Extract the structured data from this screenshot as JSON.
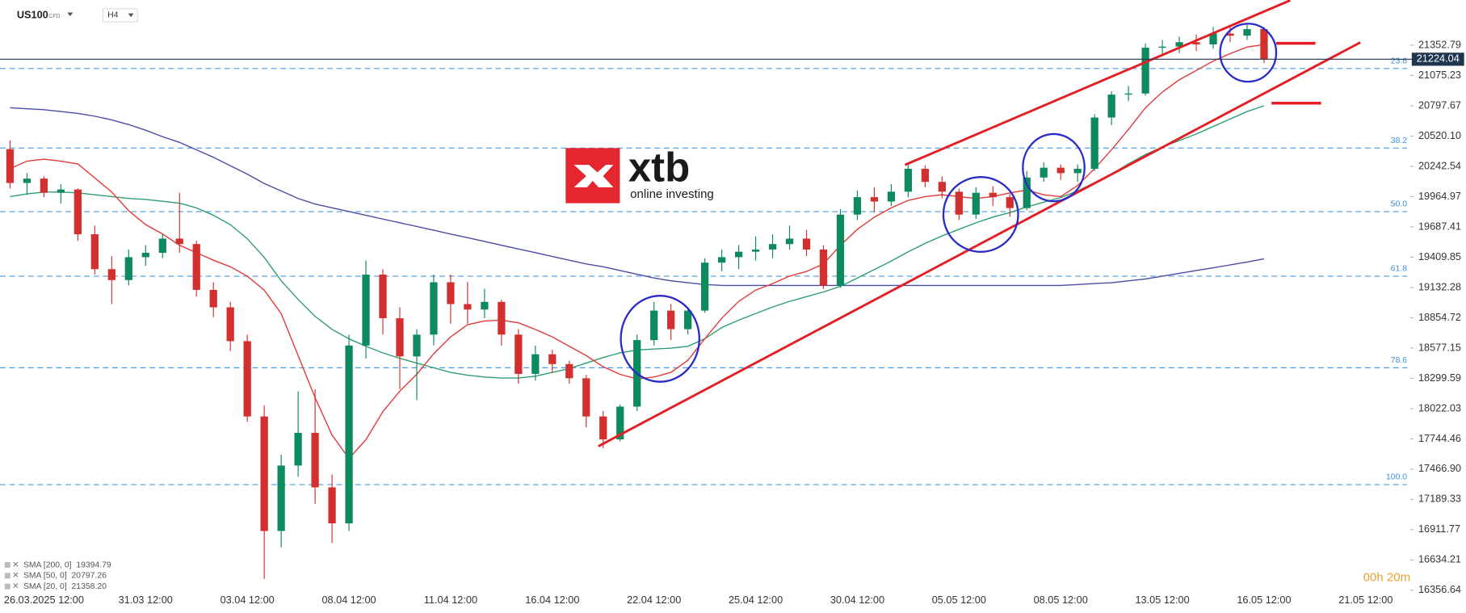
{
  "chart_data": {
    "type": "candlestick",
    "symbol": "US100",
    "instrument_type": "CFD",
    "timeframe": "H4",
    "logo": {
      "name": "xtb",
      "tagline": "online investing"
    },
    "countdown": "00h 20m",
    "up_color": "#0e8a5f",
    "down_color": "#d32f2f",
    "grid": false,
    "categories": [
      null,
      null,
      "26.03.2025 12:00",
      null,
      null,
      null,
      null,
      null,
      "31.03 12:00",
      null,
      null,
      null,
      null,
      null,
      "03.04 12:00",
      null,
      null,
      null,
      null,
      null,
      "08.04 12:00",
      null,
      null,
      null,
      null,
      null,
      "11.04 12:00",
      null,
      null,
      null,
      null,
      null,
      "16.04 12:00",
      null,
      null,
      null,
      null,
      null,
      "22.04 12:00",
      null,
      null,
      null,
      null,
      null,
      "25.04 12:00",
      null,
      null,
      null,
      null,
      null,
      "30.04 12:00",
      null,
      null,
      null,
      null,
      null,
      "05.05 12:00",
      null,
      null,
      null,
      null,
      null,
      "08.05 12:00",
      null,
      null,
      null,
      null,
      null,
      "13.05 12:00",
      null,
      null,
      null,
      null,
      null,
      "16.05 12:00",
      null,
      null,
      null,
      null,
      null,
      "21.05 12:00",
      null,
      null
    ],
    "open": [
      20400,
      20090,
      20130,
      20000,
      20030,
      19620,
      19300,
      19200,
      19410,
      19450,
      19580,
      19530,
      19110,
      18950,
      18640,
      17950,
      16900,
      17500,
      17800,
      17300,
      16970,
      18600,
      19250,
      18850,
      18500,
      18700,
      19180,
      18980,
      18930,
      19000,
      18700,
      18340,
      18520,
      18430,
      18300,
      17950,
      17740,
      18040,
      18650,
      18920,
      18750,
      18920,
      19360,
      19410,
      19460,
      19480,
      19530,
      19580,
      19480,
      19150,
      19800,
      19960,
      19920,
      20010,
      20220,
      20100,
      20010,
      19800,
      20000,
      19960,
      19860,
      20140,
      20230,
      20180,
      20220,
      20690,
      20900,
      20910,
      21330,
      21340,
      21380,
      21360,
      21460,
      21440,
      21500,
      null,
      null,
      null,
      null,
      null,
      null,
      null,
      null
    ],
    "high": [
      20480,
      20180,
      20150,
      20080,
      20040,
      19700,
      19420,
      19480,
      19520,
      19620,
      20000,
      19560,
      19180,
      19000,
      18700,
      18050,
      17600,
      18180,
      18200,
      17420,
      18700,
      19380,
      19300,
      18950,
      18750,
      19250,
      19250,
      19180,
      19120,
      19020,
      18750,
      18600,
      18560,
      18460,
      18330,
      18000,
      18060,
      18700,
      19000,
      18980,
      18950,
      19400,
      19480,
      19520,
      19600,
      19620,
      19700,
      19660,
      19520,
      19850,
      20020,
      20050,
      20080,
      20260,
      20250,
      20150,
      20040,
      20050,
      20060,
      19990,
      20200,
      20280,
      20260,
      20260,
      20720,
      20930,
      20980,
      21370,
      21400,
      21430,
      21450,
      21520,
      21520,
      21540,
      21520,
      null,
      null,
      null,
      null,
      null,
      null,
      null,
      null
    ],
    "low": [
      20040,
      19980,
      19960,
      19900,
      19560,
      19250,
      18980,
      19150,
      19330,
      19400,
      19450,
      19050,
      18860,
      18550,
      17900,
      16460,
      16750,
      17400,
      17150,
      16790,
      16900,
      18480,
      18700,
      18200,
      18100,
      18600,
      18800,
      18800,
      18850,
      18600,
      18250,
      18280,
      18350,
      18250,
      17850,
      17660,
      17720,
      18000,
      18600,
      18650,
      18700,
      18900,
      19280,
      19300,
      19380,
      19400,
      19480,
      19420,
      19120,
      19130,
      19750,
      19820,
      19880,
      19960,
      20050,
      19950,
      19750,
      19760,
      19880,
      19780,
      19840,
      20100,
      20120,
      20100,
      20200,
      20620,
      20840,
      20890,
      21250,
      21280,
      21300,
      21320,
      21380,
      21400,
      21190,
      null,
      null,
      null,
      null,
      null,
      null,
      null,
      null
    ],
    "close": [
      20090,
      20130,
      20000,
      20030,
      19620,
      19300,
      19200,
      19410,
      19450,
      19580,
      19530,
      19110,
      18950,
      18640,
      17950,
      16900,
      17500,
      17800,
      17300,
      16970,
      18600,
      19250,
      18850,
      18500,
      18700,
      19180,
      18980,
      18930,
      19000,
      18700,
      18340,
      18520,
      18430,
      18300,
      17950,
      17740,
      18040,
      18650,
      18920,
      18750,
      18920,
      19360,
      19410,
      19460,
      19480,
      19530,
      19580,
      19480,
      19150,
      19800,
      19960,
      19920,
      20010,
      20220,
      20100,
      20010,
      19800,
      20000,
      19960,
      19860,
      20140,
      20230,
      20180,
      20220,
      20690,
      20900,
      20910,
      21330,
      21340,
      21380,
      21360,
      21460,
      21440,
      21500,
      21224.04,
      null,
      null,
      null,
      null,
      null,
      null,
      null,
      null
    ],
    "series": [
      {
        "name": "SMA [200, 0]",
        "color": "#4b4ba6",
        "last_value_label": "19394.79",
        "values": [
          20779,
          20770,
          20762,
          20745,
          20727,
          20702,
          20668,
          20625,
          20574,
          20514,
          20462,
          20394,
          20325,
          20248,
          20171,
          20085,
          20017,
          19948,
          19897,
          19862,
          19828,
          19794,
          19759,
          19725,
          19691,
          19657,
          19622,
          19588,
          19554,
          19519,
          19485,
          19451,
          19416,
          19382,
          19348,
          19322,
          19288,
          19253,
          19219,
          19193,
          19176,
          19159,
          19151,
          19151,
          19151,
          19151,
          19151,
          19151,
          19151,
          19151,
          19151,
          19151,
          19151,
          19151,
          19151,
          19151,
          19151,
          19151,
          19151,
          19151,
          19151,
          19151,
          19151,
          19159,
          19168,
          19176,
          19193,
          19210,
          19236,
          19262,
          19288,
          19313,
          19339,
          19365,
          19394.79,
          null,
          null,
          null,
          null,
          null,
          null,
          null,
          null
        ]
      },
      {
        "name": "SMA [50, 0]",
        "color": "#2e9e6e",
        "last_value_label": "20797.26",
        "values": [
          19965,
          19990,
          20007,
          20007,
          19999,
          19982,
          19965,
          19948,
          19939,
          19922,
          19905,
          19862,
          19794,
          19708,
          19579,
          19408,
          19193,
          19022,
          18868,
          18748,
          18662,
          18593,
          18533,
          18482,
          18439,
          18396,
          18354,
          18328,
          18311,
          18302,
          18302,
          18319,
          18354,
          18388,
          18439,
          18490,
          18533,
          18559,
          18568,
          18576,
          18593,
          18662,
          18765,
          18833,
          18893,
          18953,
          19005,
          19048,
          19091,
          19142,
          19219,
          19296,
          19374,
          19459,
          19536,
          19605,
          19665,
          19725,
          19777,
          19819,
          19871,
          19914,
          19956,
          20017,
          20093,
          20171,
          20265,
          20351,
          20419,
          20479,
          20539,
          20608,
          20676,
          20745,
          20797.26,
          null,
          null,
          null,
          null,
          null,
          null,
          null,
          null
        ]
      },
      {
        "name": "SMA [20, 0]",
        "color": "#e23a3a",
        "last_value_label": "21358.20",
        "values": [
          20222,
          20290,
          20308,
          20290,
          20265,
          20136,
          20007,
          19836,
          19708,
          19622,
          19519,
          19451,
          19382,
          19322,
          19236,
          19108,
          18893,
          18508,
          18122,
          17780,
          17565,
          17737,
          17994,
          18182,
          18336,
          18525,
          18679,
          18791,
          18825,
          18833,
          18808,
          18748,
          18679,
          18593,
          18508,
          18405,
          18336,
          18294,
          18311,
          18354,
          18465,
          18662,
          18851,
          19005,
          19108,
          19168,
          19236,
          19279,
          19348,
          19519,
          19665,
          19776,
          19862,
          19930,
          19965,
          19982,
          19965,
          19948,
          19965,
          19999,
          20025,
          19982,
          19965,
          20067,
          20222,
          20394,
          20581,
          20779,
          20924,
          21036,
          21121,
          21207,
          21276,
          21336,
          21358.2,
          null,
          null,
          null,
          null,
          null,
          null,
          null,
          null
        ]
      }
    ],
    "fib_levels": [
      {
        "label": "23.6",
        "value": 21139
      },
      {
        "label": "38.2",
        "value": 20410
      },
      {
        "label": "50.0",
        "value": 19827
      },
      {
        "label": "61.8",
        "value": 19236
      },
      {
        "label": "78.6",
        "value": 18396
      },
      {
        "label": "100.0",
        "value": 17325
      }
    ],
    "ylim": [
      16280,
      21764
    ],
    "yticks": [
      21352.79,
      21075.23,
      20797.67,
      {
        "value": 20520.1,
        "label": "20520.10"
      },
      20242.54,
      19964.97,
      19687.41,
      19409.85,
      19132.28,
      18854.72,
      18577.15,
      18299.59,
      18022.03,
      17744.46,
      {
        "value": 17466.9,
        "label": "17466.90"
      },
      17189.33,
      16911.77,
      16634.21,
      16356.64
    ]
  }
}
